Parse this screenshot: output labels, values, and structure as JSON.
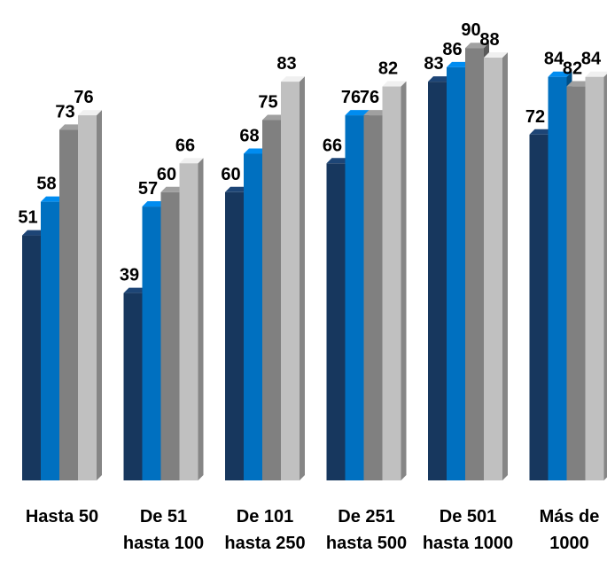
{
  "chart_data": {
    "type": "bar3d",
    "categories": [
      "Hasta 50",
      "De 51 hasta 100",
      "De 101 hasta 250",
      "De 251 hasta 500",
      "De 501 hasta 1000",
      "Más de 1000"
    ],
    "series": [
      {
        "color": "#17375e",
        "values": [
          51,
          39,
          60,
          66,
          83,
          72
        ]
      },
      {
        "color": "#0070c0",
        "values": [
          58,
          57,
          68,
          76,
          86,
          84
        ]
      },
      {
        "color": "#808080",
        "values": [
          73,
          60,
          75,
          76,
          90,
          82
        ]
      },
      {
        "color": "#c0c0c0",
        "values": [
          76,
          66,
          83,
          82,
          88,
          84
        ]
      }
    ],
    "ylim": [
      0,
      100
    ]
  }
}
